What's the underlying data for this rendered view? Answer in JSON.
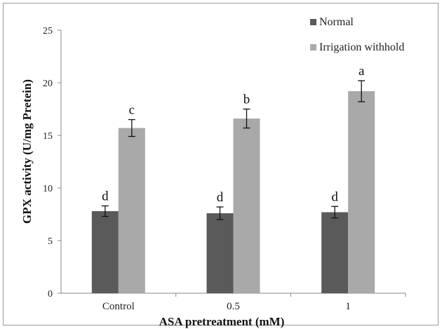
{
  "chart_data": {
    "type": "bar",
    "title": "",
    "xlabel": "ASA pretreatment (mM)",
    "ylabel": "GPX activity (U/mg Pretein)",
    "categories": [
      "Control",
      "0.5",
      "1"
    ],
    "ylim": [
      0,
      25
    ],
    "yticks": [
      0,
      5,
      10,
      15,
      20,
      25
    ],
    "grid": false,
    "legend_position": "top-right",
    "series": [
      {
        "name": "Normal",
        "color": "#5a5a5a",
        "values": [
          7.8,
          7.6,
          7.7
        ],
        "errors": [
          0.5,
          0.6,
          0.55
        ],
        "labels": [
          "d",
          "d",
          "d"
        ]
      },
      {
        "name": "Irrigation withhold",
        "color": "#a9a9a9",
        "values": [
          15.7,
          16.6,
          19.2
        ],
        "errors": [
          0.8,
          0.9,
          1.0
        ],
        "labels": [
          "c",
          "b",
          "a"
        ]
      }
    ]
  }
}
